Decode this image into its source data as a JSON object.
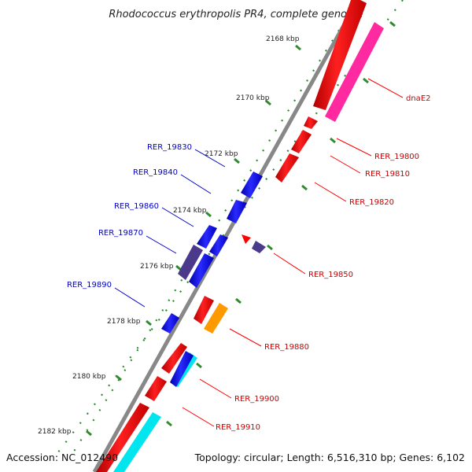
{
  "title": "Rhodococcus erythropolis PR4, complete genome",
  "accession": "Accession: NC_012490",
  "topology": "Topology: circular; Length: 6,516,310 bp; Genes: 6,102",
  "ticks": [
    "2168 kbp",
    "2170 kbp",
    "2172 kbp",
    "2174 kbp",
    "2176 kbp",
    "2178 kbp",
    "2180 kbp",
    "2182 kbp"
  ],
  "colors": {
    "forward_cds": "#ff0000",
    "reverse_cds": "#0000ff",
    "forward_label": "#cc0000",
    "reverse_label": "#0000cc",
    "magenta": "#ff2aa0",
    "purple": "#4b3a8c",
    "orange": "#ff9900",
    "cyan": "#00e5ee",
    "backbone": "#888888",
    "tick": "#2e8b2e"
  },
  "right_labels": [
    "dnaE2",
    "RER_19800",
    "RER_19810",
    "RER_19820",
    "RER_19850",
    "RER_19880",
    "RER_19900",
    "RER_19910"
  ],
  "left_labels": [
    "RER_19830",
    "RER_19840",
    "RER_19860",
    "RER_19870",
    "RER_19890"
  ]
}
